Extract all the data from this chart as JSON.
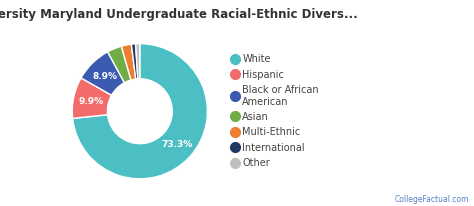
{
  "title": "Loyola University Maryland Undergraduate Racial-Ethnic Divers...",
  "slices": [
    {
      "label": "White",
      "value": 73.3,
      "color": "#4BBFC4"
    },
    {
      "label": "Hispanic",
      "value": 9.9,
      "color": "#F26C6C"
    },
    {
      "label": "Black or African\nAmerican",
      "value": 8.9,
      "color": "#3A5BAF"
    },
    {
      "label": "Asian",
      "value": 3.5,
      "color": "#70AD47"
    },
    {
      "label": "Multi-Ethnic",
      "value": 2.4,
      "color": "#ED7D31"
    },
    {
      "label": "International",
      "value": 1.0,
      "color": "#1F3864"
    },
    {
      "label": "Other",
      "value": 1.0,
      "color": "#C0C0C0"
    }
  ],
  "background_color": "#ffffff",
  "title_fontsize": 8.5,
  "wedge_label_fontsize": 6.5,
  "legend_fontsize": 7,
  "watermark": "CollegeFactual.com",
  "watermark_color": "#4472C4"
}
